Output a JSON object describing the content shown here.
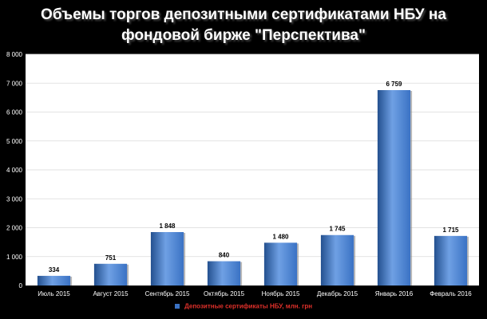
{
  "title_line1": "Объемы торгов депозитными сертификатами НБУ  на",
  "title_line2": "фондовой бирже \"Перспектива\"",
  "colors": {
    "background": "#000000",
    "plot_area": "#ffffff",
    "bar": "#3a72c4",
    "bar_light": "#6fa0e4",
    "bar_dark": "#23508f",
    "legend_text": "#e0302a",
    "gridline": "#d9d9d9"
  },
  "chart_data": {
    "type": "bar",
    "title": "Объемы торгов депозитными сертификатами НБУ  на фондовой бирже \"Перспектива\"",
    "categories": [
      "Июль 2015",
      "Август 2015",
      "Сентябрь 2015",
      "Октябрь 2015",
      "Ноябрь 2015",
      "Декабрь 2015",
      "Январь 2016",
      "Февраль 2016"
    ],
    "series": [
      {
        "name": "Депозитные сертификаты НБУ, млн. грн",
        "values": [
          334,
          751,
          1848,
          840,
          1480,
          1745,
          6759,
          1715
        ],
        "value_labels": [
          "334",
          "751",
          "1 848",
          "840",
          "1 480",
          "1 745",
          "6 759",
          "1 715"
        ]
      }
    ],
    "ylim": [
      0,
      8000
    ],
    "yticks": [
      0,
      1000,
      2000,
      3000,
      4000,
      5000,
      6000,
      7000,
      8000
    ],
    "ytick_labels": [
      "0",
      "1 000",
      "2 000",
      "3 000",
      "4 000",
      "5 000",
      "6 000",
      "7 000",
      "8 000"
    ],
    "grid": true,
    "legend_position": "bottom"
  }
}
